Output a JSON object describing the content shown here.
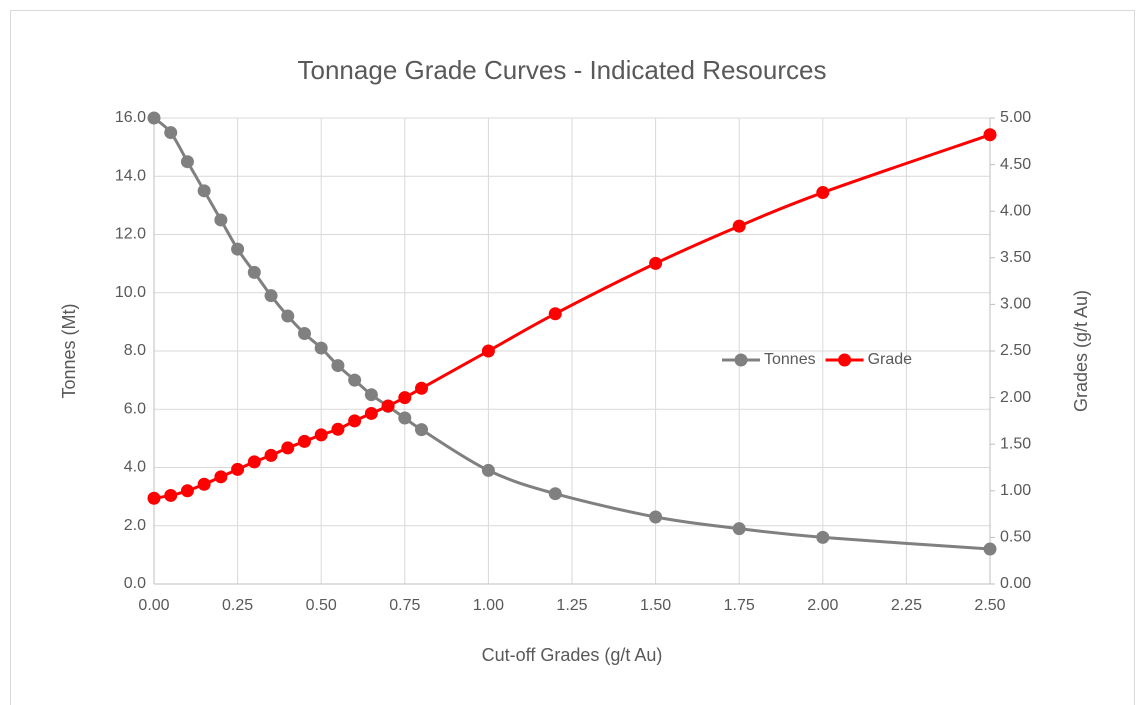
{
  "chart_data": {
    "type": "line",
    "title": "Tonnage Grade Curves - Indicated Resources",
    "x_label": "Cut-off Grades (g/t Au)",
    "y_label": "Tonnes (Mt)",
    "y2_label": "Grades (g/t Au)",
    "x": [
      0,
      0.05,
      0.1,
      0.15,
      0.2,
      0.25,
      0.3,
      0.35,
      0.4,
      0.45,
      0.5,
      0.55,
      0.6,
      0.65,
      0.7,
      0.75,
      0.8,
      1.0,
      1.2,
      1.5,
      1.75,
      2.0,
      2.5
    ],
    "series": [
      {
        "name": "Tonnes",
        "color": "#808080",
        "axis": "y",
        "values": [
          16.0,
          15.5,
          14.5,
          13.5,
          12.5,
          11.5,
          10.7,
          9.9,
          9.2,
          8.6,
          8.1,
          7.5,
          7.0,
          6.5,
          6.1,
          5.7,
          5.3,
          3.9,
          3.1,
          2.3,
          1.9,
          1.6,
          1.2
        ]
      },
      {
        "name": "Grade",
        "color": "#ff0000",
        "axis": "y2",
        "values": [
          0.92,
          0.95,
          1.0,
          1.07,
          1.15,
          1.23,
          1.31,
          1.38,
          1.46,
          1.53,
          1.6,
          1.66,
          1.75,
          1.83,
          1.91,
          2.0,
          2.1,
          2.5,
          2.9,
          3.44,
          3.84,
          4.2,
          4.82
        ]
      }
    ],
    "xlim": [
      0,
      2.5
    ],
    "xticks": [
      {
        "value": 0,
        "label": "0.00"
      },
      {
        "value": 0.25,
        "label": "0.25"
      },
      {
        "value": 0.5,
        "label": "0.50"
      },
      {
        "value": 0.75,
        "label": "0.75"
      },
      {
        "value": 1,
        "label": "1.00"
      },
      {
        "value": 1.25,
        "label": "1.25"
      },
      {
        "value": 1.5,
        "label": "1.50"
      },
      {
        "value": 1.75,
        "label": "1.75"
      },
      {
        "value": 2,
        "label": "2.00"
      },
      {
        "value": 2.25,
        "label": "2.25"
      },
      {
        "value": 2.5,
        "label": "2.50"
      }
    ],
    "ylim": [
      0,
      16
    ],
    "yticks": [
      {
        "value": 0,
        "label": "0.0"
      },
      {
        "value": 2,
        "label": "2.0"
      },
      {
        "value": 4,
        "label": "4.0"
      },
      {
        "value": 6,
        "label": "6.0"
      },
      {
        "value": 8,
        "label": "8.0"
      },
      {
        "value": 10,
        "label": "10.0"
      },
      {
        "value": 12,
        "label": "12.0"
      },
      {
        "value": 14,
        "label": "14.0"
      },
      {
        "value": 16,
        "label": "16.0"
      }
    ],
    "y2lim": [
      0,
      5
    ],
    "y2ticks": [
      {
        "value": 0,
        "label": "0.00"
      },
      {
        "value": 0.5,
        "label": "0.50"
      },
      {
        "value": 1,
        "label": "1.00"
      },
      {
        "value": 1.5,
        "label": "1.50"
      },
      {
        "value": 2,
        "label": "2.00"
      },
      {
        "value": 2.5,
        "label": "2.50"
      },
      {
        "value": 3,
        "label": "3.00"
      },
      {
        "value": 3.5,
        "label": "3.50"
      },
      {
        "value": 4,
        "label": "4.00"
      },
      {
        "value": 4.5,
        "label": "4.50"
      },
      {
        "value": 5,
        "label": "5.00"
      }
    ],
    "grid": true,
    "legend": "right"
  }
}
